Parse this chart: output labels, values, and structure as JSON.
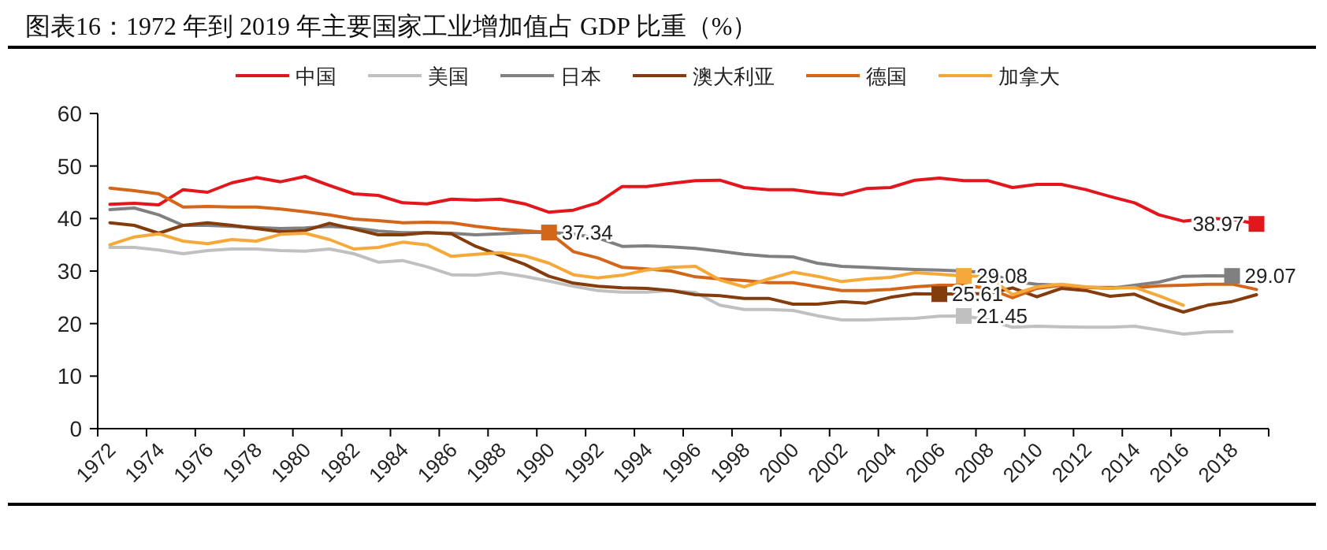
{
  "chart_data": {
    "type": "line",
    "title": "图表16：1972 年到 2019 年主要国家工业增加值占 GDP 比重（%）",
    "categories": [
      "1972",
      null,
      "1974",
      null,
      "1976",
      null,
      "1978",
      null,
      "1980",
      null,
      "1982",
      null,
      "1984",
      null,
      "1986",
      null,
      "1988",
      null,
      "1990",
      null,
      "1992",
      null,
      "1994",
      null,
      "1996",
      null,
      "1998",
      null,
      "2000",
      null,
      "2002",
      null,
      "2004",
      null,
      "2006",
      null,
      "2008",
      null,
      "2010",
      null,
      "2012",
      null,
      "2014",
      null,
      "2016",
      null,
      "2018",
      null
    ],
    "series": [
      {
        "name": "中国",
        "color": "#e3161d",
        "values": [
          42.7,
          42.9,
          42.6,
          45.5,
          45.0,
          46.8,
          47.8,
          47.0,
          48.0,
          46.3,
          44.7,
          44.4,
          43.0,
          42.8,
          43.7,
          43.5,
          43.7,
          42.8,
          41.2,
          41.6,
          43.0,
          46.1,
          46.1,
          46.7,
          47.2,
          47.3,
          45.9,
          45.5,
          45.5,
          44.9,
          44.5,
          45.7,
          45.9,
          47.3,
          47.7,
          47.2,
          47.2,
          45.9,
          46.5,
          46.5,
          45.5,
          44.2,
          43.0,
          40.7,
          39.5,
          40.0,
          39.9,
          38.97
        ],
        "value_labels": [
          null,
          null,
          null,
          null,
          null,
          null,
          null,
          null,
          null,
          null,
          null,
          null,
          null,
          null,
          null,
          null,
          null,
          null,
          null,
          null,
          null,
          null,
          null,
          null,
          null,
          null,
          null,
          null,
          null,
          null,
          null,
          null,
          null,
          null,
          null,
          null,
          null,
          null,
          null,
          null,
          null,
          null,
          null,
          null,
          null,
          null,
          null,
          "38.97"
        ]
      },
      {
        "name": "美国",
        "color": "#c0c0c0",
        "values": [
          34.5,
          34.5,
          34.0,
          33.3,
          33.9,
          34.2,
          34.2,
          33.9,
          33.8,
          34.2,
          33.3,
          31.7,
          32.0,
          30.8,
          29.3,
          29.2,
          29.7,
          29.0,
          28.1,
          27.1,
          26.3,
          26.0,
          26.0,
          26.3,
          25.9,
          23.5,
          22.7,
          22.7,
          22.5,
          21.5,
          20.7,
          20.7,
          20.9,
          21.0,
          21.4,
          21.45,
          20.7,
          19.3,
          19.5,
          19.4,
          19.3,
          19.3,
          19.5,
          18.8,
          18.0,
          18.4,
          18.5,
          null
        ],
        "value_labels": [
          null,
          null,
          null,
          null,
          null,
          null,
          null,
          null,
          null,
          null,
          null,
          null,
          null,
          null,
          null,
          null,
          null,
          null,
          null,
          null,
          null,
          null,
          null,
          null,
          null,
          null,
          null,
          null,
          null,
          null,
          null,
          null,
          null,
          null,
          null,
          "21.45",
          null,
          null,
          null,
          null,
          null,
          null,
          null,
          null,
          null,
          null,
          null,
          null
        ]
      },
      {
        "name": "日本",
        "color": "#808080",
        "values": [
          41.7,
          42.0,
          40.7,
          38.7,
          38.7,
          38.5,
          38.3,
          38.1,
          38.2,
          38.5,
          38.2,
          37.6,
          37.3,
          37.3,
          37.2,
          36.9,
          37.1,
          37.3,
          37.4,
          37.0,
          36.3,
          34.7,
          34.8,
          34.6,
          34.3,
          33.8,
          33.2,
          32.8,
          32.7,
          31.5,
          30.9,
          30.7,
          30.5,
          30.3,
          30.2,
          30.0,
          29.7,
          28.0,
          27.5,
          27.3,
          26.9,
          26.7,
          27.3,
          27.9,
          29.0,
          29.1,
          29.07,
          null
        ],
        "value_labels": [
          null,
          null,
          null,
          null,
          null,
          null,
          null,
          null,
          null,
          null,
          null,
          null,
          null,
          null,
          null,
          null,
          null,
          null,
          null,
          null,
          null,
          null,
          null,
          null,
          null,
          null,
          null,
          null,
          null,
          null,
          null,
          null,
          null,
          null,
          null,
          null,
          null,
          null,
          null,
          null,
          null,
          null,
          null,
          null,
          null,
          null,
          "29.07",
          null
        ]
      },
      {
        "name": "澳大利亚",
        "color": "#843c0c",
        "values": [
          39.2,
          38.7,
          37.2,
          38.7,
          39.2,
          38.7,
          38.1,
          37.5,
          37.7,
          39.1,
          38.0,
          36.9,
          36.9,
          37.3,
          37.1,
          34.7,
          33.0,
          31.3,
          29.0,
          27.7,
          27.1,
          26.8,
          26.7,
          26.3,
          25.5,
          25.3,
          24.8,
          24.8,
          23.7,
          23.7,
          24.2,
          23.9,
          25.0,
          25.7,
          25.61,
          25.7,
          25.7,
          26.8,
          25.1,
          26.7,
          26.3,
          25.2,
          25.6,
          23.7,
          22.2,
          23.5,
          24.2,
          25.5
        ],
        "value_labels": [
          null,
          null,
          null,
          null,
          null,
          null,
          null,
          null,
          null,
          null,
          null,
          null,
          null,
          null,
          null,
          null,
          null,
          null,
          null,
          null,
          null,
          null,
          null,
          null,
          null,
          null,
          null,
          null,
          null,
          null,
          null,
          null,
          null,
          null,
          "25.61",
          null,
          null,
          null,
          null,
          null,
          null,
          null,
          null,
          null,
          null,
          null,
          null,
          null
        ]
      },
      {
        "name": "德国",
        "color": "#d4661a",
        "values": [
          45.8,
          45.3,
          44.7,
          42.2,
          42.3,
          42.2,
          42.2,
          41.8,
          41.3,
          40.7,
          39.9,
          39.6,
          39.2,
          39.3,
          39.2,
          38.5,
          38.0,
          37.7,
          37.34,
          33.7,
          32.5,
          30.7,
          30.4,
          30.0,
          28.9,
          28.5,
          28.2,
          27.8,
          27.8,
          27.0,
          26.3,
          26.3,
          26.5,
          27.0,
          27.3,
          27.3,
          26.7,
          24.9,
          26.7,
          27.3,
          26.9,
          26.9,
          26.8,
          27.2,
          27.3,
          27.5,
          27.5,
          26.5
        ],
        "value_labels": [
          null,
          null,
          null,
          null,
          null,
          null,
          null,
          null,
          null,
          null,
          null,
          null,
          null,
          null,
          null,
          null,
          null,
          null,
          "37.34",
          null,
          null,
          null,
          null,
          null,
          null,
          null,
          null,
          null,
          null,
          null,
          null,
          null,
          null,
          null,
          null,
          null,
          null,
          null,
          null,
          null,
          null,
          null,
          null,
          null,
          null,
          null,
          null,
          null
        ]
      },
      {
        "name": "加拿大",
        "color": "#f5a93a",
        "values": [
          35.0,
          36.5,
          37.1,
          35.7,
          35.2,
          36.0,
          35.7,
          37.0,
          37.2,
          36.0,
          34.2,
          34.5,
          35.5,
          35.0,
          32.8,
          33.2,
          33.5,
          32.9,
          31.5,
          29.3,
          28.7,
          29.2,
          30.2,
          30.7,
          30.9,
          28.3,
          27.0,
          28.5,
          29.8,
          29.0,
          28.0,
          28.5,
          28.8,
          29.7,
          29.4,
          29.08,
          29.0,
          25.5,
          27.0,
          27.5,
          27.0,
          26.7,
          26.9,
          25.3,
          23.5,
          null,
          null,
          null
        ],
        "value_labels": [
          null,
          null,
          null,
          null,
          null,
          null,
          null,
          null,
          null,
          null,
          null,
          null,
          null,
          null,
          null,
          null,
          null,
          null,
          null,
          null,
          null,
          null,
          null,
          null,
          null,
          null,
          null,
          null,
          null,
          null,
          null,
          null,
          null,
          null,
          null,
          "29.08",
          null,
          null,
          null,
          null,
          null,
          null,
          null,
          null,
          null,
          null,
          null,
          null
        ]
      }
    ],
    "ylim": [
      0,
      60
    ],
    "yticks": [
      0,
      10,
      20,
      30,
      40,
      50,
      60
    ],
    "grid": false,
    "legend": "top",
    "marker": "none",
    "line_style": "solid"
  }
}
